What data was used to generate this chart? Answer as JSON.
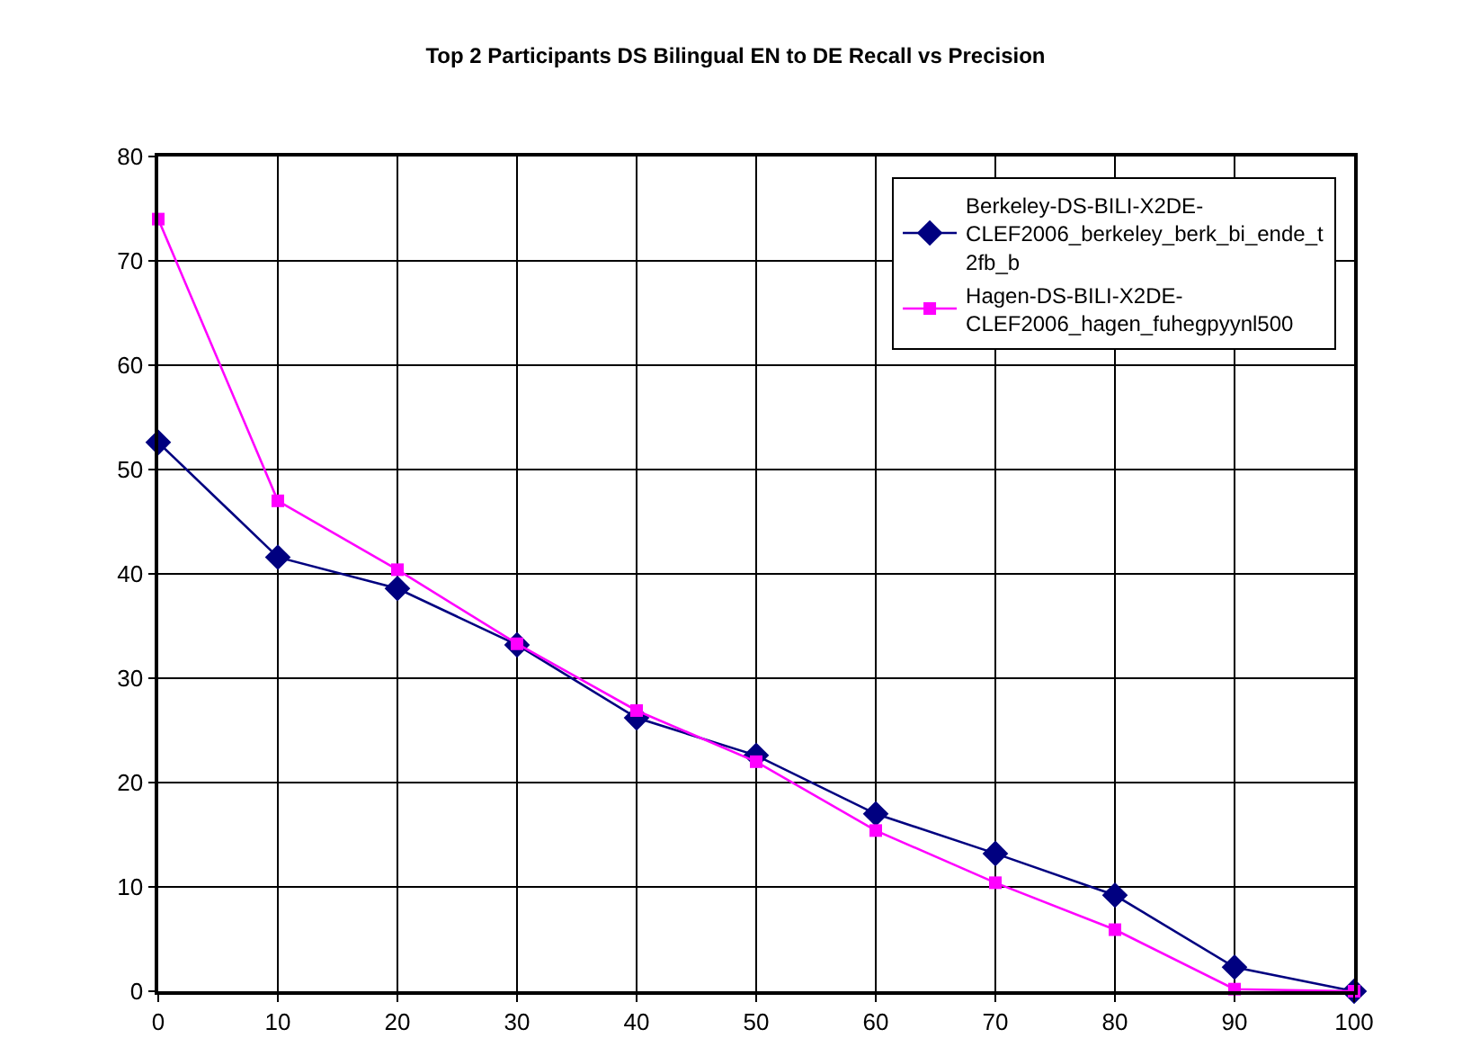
{
  "chart_data": {
    "type": "line",
    "title": "Top 2 Participants DS Bilingual EN to DE Recall vs Precision",
    "x": [
      0,
      10,
      20,
      30,
      40,
      50,
      60,
      70,
      80,
      90,
      100
    ],
    "xlim": [
      0,
      100
    ],
    "xticks": [
      0,
      10,
      20,
      30,
      40,
      50,
      60,
      70,
      80,
      90,
      100
    ],
    "ylim": [
      0,
      80
    ],
    "yticks": [
      0,
      10,
      20,
      30,
      40,
      50,
      60,
      70,
      80
    ],
    "grid": true,
    "legend": "top right",
    "series": [
      {
        "name": "Berkeley-DS-BILI-X2DE-CLEF2006_berkeley_berk_bi_ende_t2fb_b",
        "color": "#000080",
        "marker": "diamond",
        "values": [
          52.6,
          41.6,
          38.6,
          33.2,
          26.2,
          22.6,
          17.0,
          13.2,
          9.2,
          2.3,
          0
        ]
      },
      {
        "name": "Hagen-DS-BILI-X2DE-CLEF2006_hagen_fuhegpyynl500",
        "color": "#ff00ff",
        "marker": "square",
        "values": [
          74,
          47,
          40.4,
          33.3,
          26.9,
          22.0,
          15.4,
          10.4,
          5.9,
          0.2,
          0
        ]
      }
    ]
  }
}
